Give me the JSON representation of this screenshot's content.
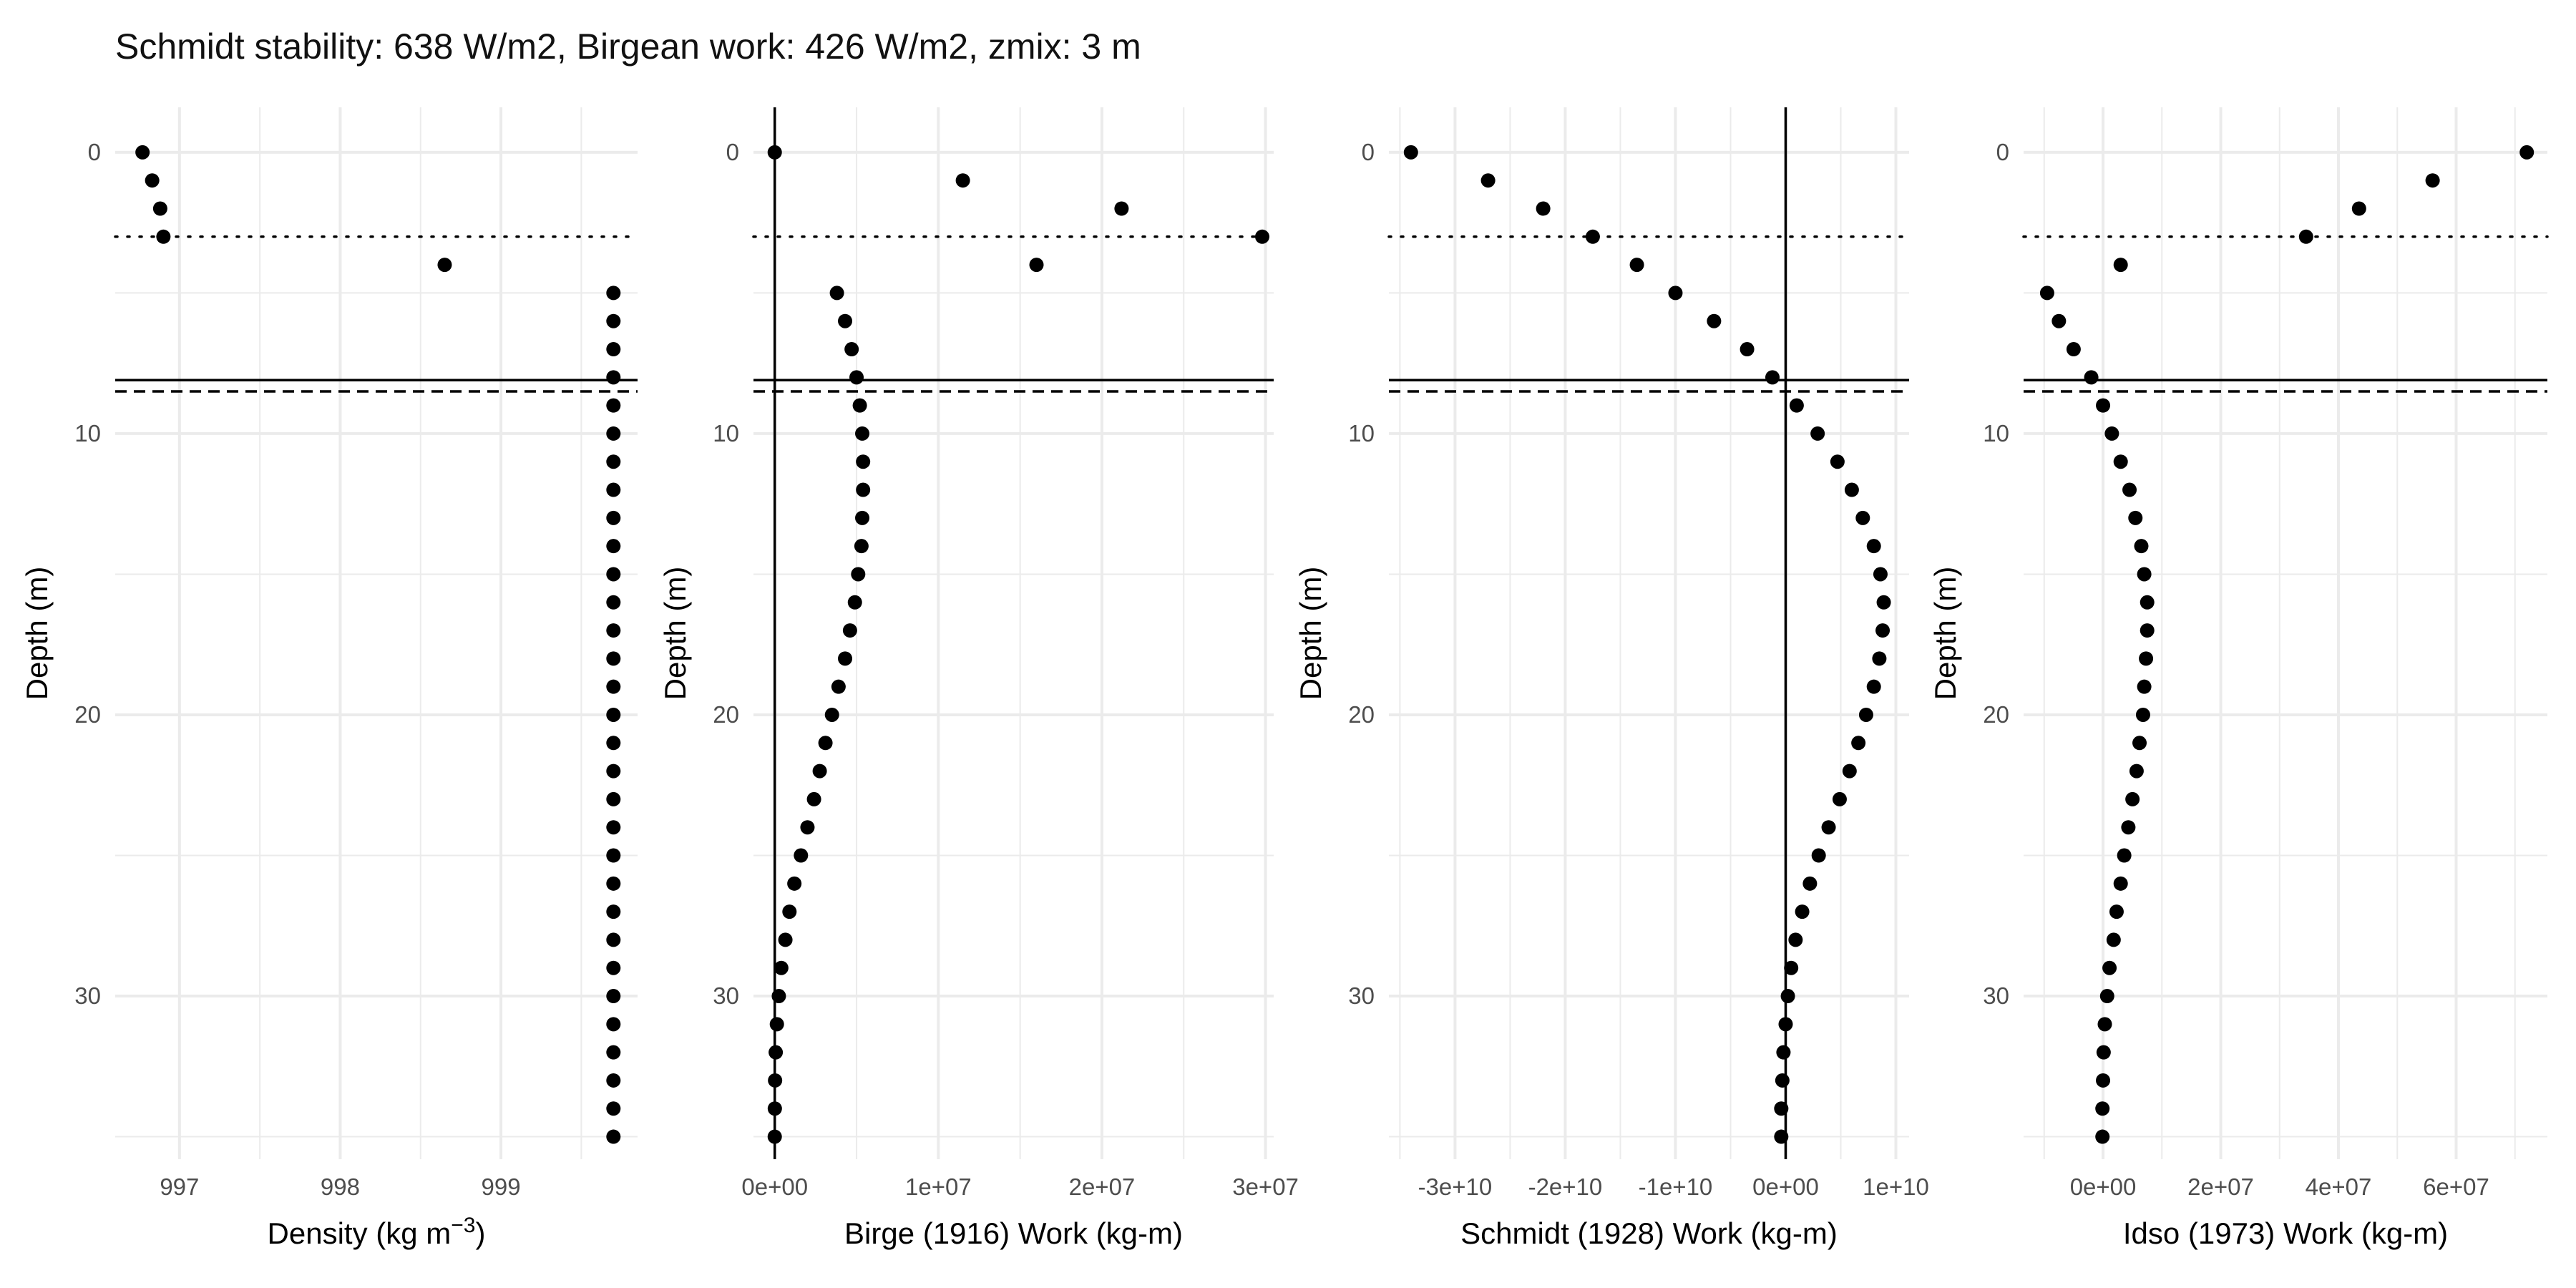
{
  "title": "Schmidt stability: 638 W/m2, Birgean work: 426 W/m2, zmix: 3 m",
  "colors": {
    "points": "#000000",
    "grid": "#ebebeb",
    "background": "#ffffff",
    "axis_text": "#4d4d4d"
  },
  "chart_data": [
    {
      "type": "scatter",
      "id": "density",
      "xlabel": "Density (kg m",
      "xlabel_sup": "−3",
      "xlabel_tail": ")",
      "ylabel": "Depth (m)",
      "xlim": [
        996.6,
        999.85
      ],
      "ylim": [
        35.8,
        -1.6
      ],
      "x_ticks": [
        {
          "value": 997,
          "label": "997"
        },
        {
          "value": 998,
          "label": "998"
        },
        {
          "value": 999,
          "label": "999"
        }
      ],
      "y_ticks": [
        {
          "value": 0,
          "label": "0"
        },
        {
          "value": 10,
          "label": "10"
        },
        {
          "value": 20,
          "label": "20"
        },
        {
          "value": 30,
          "label": "30"
        }
      ],
      "grid": true,
      "vlines": [],
      "points": [
        [
          996.77,
          0
        ],
        [
          996.83,
          1
        ],
        [
          996.88,
          2
        ],
        [
          996.9,
          3
        ],
        [
          998.65,
          4
        ],
        [
          999.7,
          5
        ],
        [
          999.7,
          6
        ],
        [
          999.7,
          7
        ],
        [
          999.7,
          8
        ],
        [
          999.7,
          9
        ],
        [
          999.7,
          10
        ],
        [
          999.7,
          11
        ],
        [
          999.7,
          12
        ],
        [
          999.7,
          13
        ],
        [
          999.7,
          14
        ],
        [
          999.7,
          15
        ],
        [
          999.7,
          16
        ],
        [
          999.7,
          17
        ],
        [
          999.7,
          18
        ],
        [
          999.7,
          19
        ],
        [
          999.7,
          20
        ],
        [
          999.7,
          21
        ],
        [
          999.7,
          22
        ],
        [
          999.7,
          23
        ],
        [
          999.7,
          24
        ],
        [
          999.7,
          25
        ],
        [
          999.7,
          26
        ],
        [
          999.7,
          27
        ],
        [
          999.7,
          28
        ],
        [
          999.7,
          29
        ],
        [
          999.7,
          30
        ],
        [
          999.7,
          31
        ],
        [
          999.7,
          32
        ],
        [
          999.7,
          33
        ],
        [
          999.7,
          34
        ],
        [
          999.7,
          35
        ]
      ]
    },
    {
      "type": "scatter",
      "id": "birge",
      "xlabel": "Birge (1916) Work (kg-m)",
      "ylabel": "Depth (m)",
      "xlim": [
        -1300000.0,
        30500000.0
      ],
      "ylim": [
        35.8,
        -1.6
      ],
      "x_ticks": [
        {
          "value": 0,
          "label": "0e+00"
        },
        {
          "value": 10000000.0,
          "label": "1e+07"
        },
        {
          "value": 20000000.0,
          "label": "2e+07"
        },
        {
          "value": 30000000.0,
          "label": "3e+07"
        }
      ],
      "y_ticks": [
        {
          "value": 0,
          "label": "0"
        },
        {
          "value": 10,
          "label": "10"
        },
        {
          "value": 20,
          "label": "20"
        },
        {
          "value": 30,
          "label": "30"
        }
      ],
      "grid": true,
      "vlines": [
        0
      ],
      "points": [
        [
          0,
          0
        ],
        [
          11500000.0,
          1
        ],
        [
          21200000.0,
          2
        ],
        [
          29800000.0,
          3
        ],
        [
          16000000.0,
          4
        ],
        [
          3800000.0,
          5
        ],
        [
          4300000.0,
          6
        ],
        [
          4700000.0,
          7
        ],
        [
          5000000.0,
          8
        ],
        [
          5200000.0,
          9
        ],
        [
          5350000.0,
          10
        ],
        [
          5400000.0,
          11
        ],
        [
          5400000.0,
          12
        ],
        [
          5350000.0,
          13
        ],
        [
          5300000.0,
          14
        ],
        [
          5100000.0,
          15
        ],
        [
          4900000.0,
          16
        ],
        [
          4600000.0,
          17
        ],
        [
          4300000.0,
          18
        ],
        [
          3900000.0,
          19
        ],
        [
          3500000.0,
          20
        ],
        [
          3100000.0,
          21
        ],
        [
          2750000.0,
          22
        ],
        [
          2400000.0,
          23
        ],
        [
          2000000.0,
          24
        ],
        [
          1600000.0,
          25
        ],
        [
          1200000.0,
          26
        ],
        [
          900000.0,
          27
        ],
        [
          650000.0,
          28
        ],
        [
          400000.0,
          29
        ],
        [
          250000.0,
          30
        ],
        [
          130000.0,
          31
        ],
        [
          60000.0,
          32
        ],
        [
          20000.0,
          33
        ],
        [
          5000.0,
          34
        ],
        [
          0,
          35
        ]
      ]
    },
    {
      "type": "scatter",
      "id": "schmidt",
      "xlabel": "Schmidt (1928) Work (kg-m)",
      "ylabel": "Depth (m)",
      "xlim": [
        -36000000000.0,
        11200000000.0
      ],
      "ylim": [
        35.8,
        -1.6
      ],
      "x_ticks": [
        {
          "value": -30000000000.0,
          "label": "-3e+10"
        },
        {
          "value": -20000000000.0,
          "label": "-2e+10"
        },
        {
          "value": -10000000000.0,
          "label": "-1e+10"
        },
        {
          "value": 0,
          "label": "0e+00"
        },
        {
          "value": 10000000000.0,
          "label": "1e+10"
        }
      ],
      "y_ticks": [
        {
          "value": 0,
          "label": "0"
        },
        {
          "value": 10,
          "label": "10"
        },
        {
          "value": 20,
          "label": "20"
        },
        {
          "value": 30,
          "label": "30"
        }
      ],
      "grid": true,
      "vlines": [
        0
      ],
      "points": [
        [
          -34000000000.0,
          0
        ],
        [
          -27000000000.0,
          1
        ],
        [
          -22000000000.0,
          2
        ],
        [
          -17500000000.0,
          3
        ],
        [
          -13500000000.0,
          4
        ],
        [
          -10000000000.0,
          5
        ],
        [
          -6500000000.0,
          6
        ],
        [
          -3500000000.0,
          7
        ],
        [
          -1200000000.0,
          8
        ],
        [
          1000000000.0,
          9
        ],
        [
          2900000000.0,
          10
        ],
        [
          4700000000.0,
          11
        ],
        [
          6000000000.0,
          12
        ],
        [
          7000000000.0,
          13
        ],
        [
          8000000000.0,
          14
        ],
        [
          8600000000.0,
          15
        ],
        [
          8900000000.0,
          16
        ],
        [
          8800000000.0,
          17
        ],
        [
          8500000000.0,
          18
        ],
        [
          8000000000.0,
          19
        ],
        [
          7300000000.0,
          20
        ],
        [
          6600000000.0,
          21
        ],
        [
          5800000000.0,
          22
        ],
        [
          4900000000.0,
          23
        ],
        [
          3900000000.0,
          24
        ],
        [
          3000000000.0,
          25
        ],
        [
          2200000000.0,
          26
        ],
        [
          1500000000.0,
          27
        ],
        [
          900000000.0,
          28
        ],
        [
          500000000.0,
          29
        ],
        [
          200000000.0,
          30
        ],
        [
          0,
          31
        ],
        [
          -200000000.0,
          32
        ],
        [
          -300000000.0,
          33
        ],
        [
          -400000000.0,
          34
        ],
        [
          -400000000.0,
          35
        ]
      ]
    },
    {
      "type": "scatter",
      "id": "idso",
      "xlabel": "Idso (1973) Work (kg-m)",
      "ylabel": "Depth (m)",
      "xlim": [
        -13500000.0,
        75500000.0
      ],
      "ylim": [
        35.8,
        -1.6
      ],
      "x_ticks": [
        {
          "value": 0,
          "label": "0e+00"
        },
        {
          "value": 20000000.0,
          "label": "2e+07"
        },
        {
          "value": 40000000.0,
          "label": "4e+07"
        },
        {
          "value": 60000000.0,
          "label": "6e+07"
        }
      ],
      "y_ticks": [
        {
          "value": 0,
          "label": "0"
        },
        {
          "value": 10,
          "label": "10"
        },
        {
          "value": 20,
          "label": "20"
        },
        {
          "value": 30,
          "label": "30"
        }
      ],
      "grid": true,
      "vlines": [],
      "points": [
        [
          72000000.0,
          0
        ],
        [
          56000000.0,
          1
        ],
        [
          43500000.0,
          2
        ],
        [
          34500000.0,
          3
        ],
        [
          3000000.0,
          4
        ],
        [
          -9500000.0,
          5
        ],
        [
          -7500000.0,
          6
        ],
        [
          -5000000.0,
          7
        ],
        [
          -2000000.0,
          8
        ],
        [
          0,
          9
        ],
        [
          1500000.0,
          10
        ],
        [
          3000000.0,
          11
        ],
        [
          4500000.0,
          12
        ],
        [
          5500000.0,
          13
        ],
        [
          6500000.0,
          14
        ],
        [
          7000000.0,
          15
        ],
        [
          7500000.0,
          16
        ],
        [
          7500000.0,
          17
        ],
        [
          7300000.0,
          18
        ],
        [
          7000000.0,
          19
        ],
        [
          6800000.0,
          20
        ],
        [
          6200000.0,
          21
        ],
        [
          5700000.0,
          22
        ],
        [
          5000000.0,
          23
        ],
        [
          4300000.0,
          24
        ],
        [
          3600000.0,
          25
        ],
        [
          3000000.0,
          26
        ],
        [
          2300000.0,
          27
        ],
        [
          1800000.0,
          28
        ],
        [
          1100000.0,
          29
        ],
        [
          700000.0,
          30
        ],
        [
          300000.0,
          31
        ],
        [
          100000.0,
          32
        ],
        [
          0,
          33
        ],
        [
          -100000.0,
          34
        ],
        [
          -100000.0,
          35
        ]
      ]
    }
  ],
  "hlines": {
    "zmix_dotted": 3,
    "solid": 8.1,
    "dashed": 8.5
  }
}
